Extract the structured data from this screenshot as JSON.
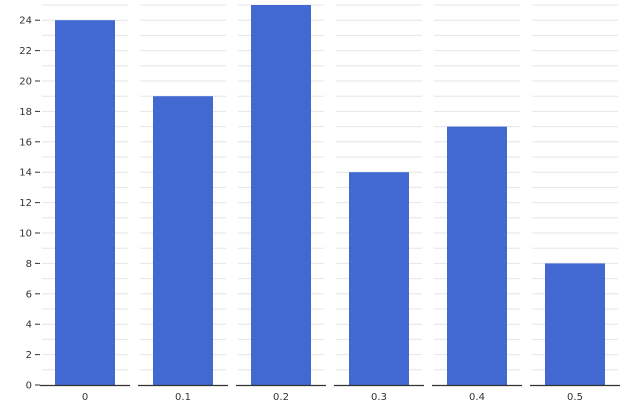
{
  "chart_data": {
    "type": "bar",
    "title": "",
    "xlabel": "",
    "ylabel": "",
    "categories": [
      "0",
      "0.1",
      "0.2",
      "0.3",
      "0.4",
      "0.5"
    ],
    "values": [
      24,
      19,
      25,
      14,
      17,
      8
    ],
    "ylim": [
      0,
      25
    ],
    "yticks": [
      0,
      2,
      4,
      6,
      8,
      10,
      12,
      14,
      16,
      18,
      20,
      22,
      24
    ],
    "grid": "horizontal",
    "legend": "none",
    "colors": {
      "bar": "#4169d1",
      "grid": "#e6e6e6",
      "axis": "#333333",
      "text": "#333333"
    }
  }
}
